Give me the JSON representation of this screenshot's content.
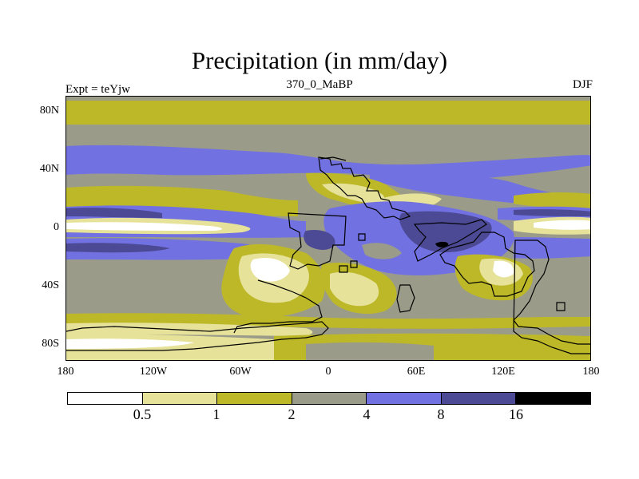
{
  "title": "Precipitation (in mm/day)",
  "subtitle_left": "Expt = teYjw",
  "subtitle_center": "370_0_MaBP",
  "subtitle_right": "DJF",
  "lat_labels": [
    "80N",
    "40N",
    "0",
    "40S",
    "80S"
  ],
  "lon_labels": [
    "180",
    "120W",
    "60W",
    "0",
    "60E",
    "120E",
    "180"
  ],
  "colorbar": {
    "colors": [
      "#ffffff",
      "#e6e299",
      "#bdb828",
      "#9b9b8a",
      "#7271e1",
      "#4c4a94",
      "#000000"
    ],
    "labels": [
      "0.5",
      "1",
      "2",
      "4",
      "8",
      "16"
    ]
  },
  "palette": {
    "white": "#ffffff",
    "pale_yellow": "#e6e299",
    "olive": "#bdb828",
    "gray": "#9b9b8a",
    "blue": "#7271e1",
    "dark_blue": "#4c4a94",
    "black": "#000000"
  }
}
